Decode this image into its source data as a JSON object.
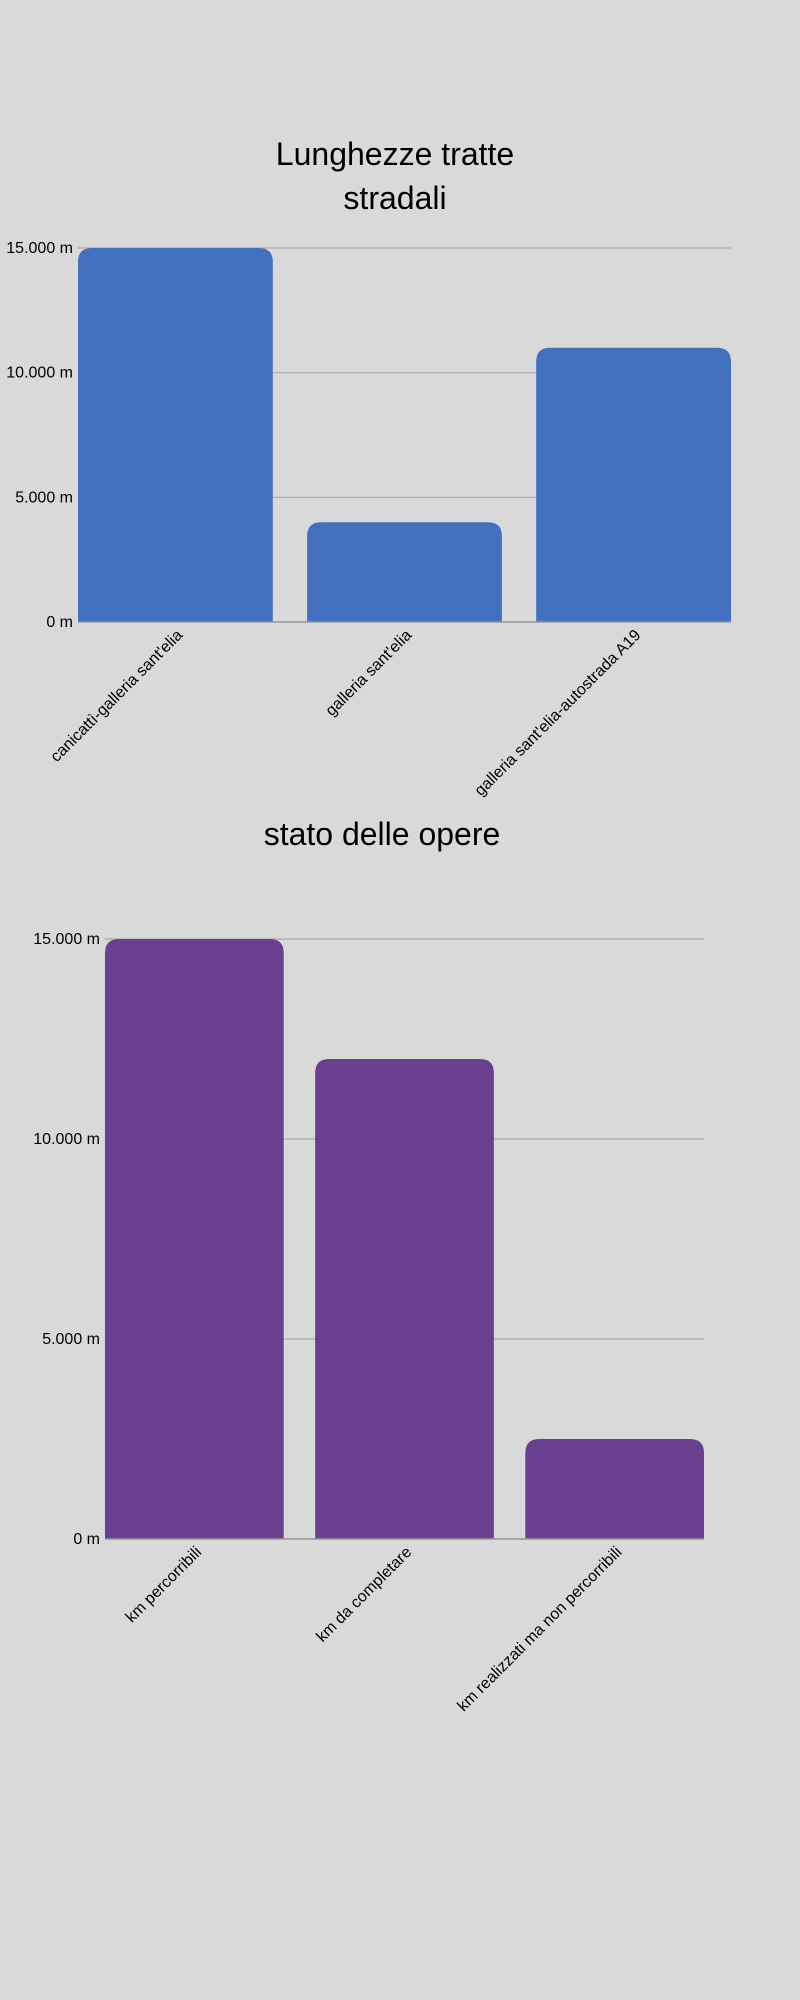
{
  "chart_data": [
    {
      "type": "bar",
      "title": "Lunghezze tratte stradali",
      "categories": [
        "canicattì-galleria sant'elia",
        "galleria sant'elia",
        "galleria sant'elia-autostrada A19"
      ],
      "values": [
        15000,
        4000,
        11000
      ],
      "ylim": [
        0,
        15000
      ],
      "yticks": [
        0,
        5000,
        10000,
        15000
      ],
      "ytick_labels": [
        "0 m",
        "5.000 m",
        "10.000 m",
        "15.000 m"
      ],
      "xlabel": "",
      "ylabel": "",
      "grid": true,
      "legend": "none",
      "color": "#4370be"
    },
    {
      "type": "bar",
      "title": "stato delle opere",
      "categories": [
        "km percorribili",
        "km da completare",
        "km realizzati ma non percorribili"
      ],
      "values": [
        15000,
        12000,
        2500
      ],
      "ylim": [
        0,
        15000
      ],
      "yticks": [
        0,
        5000,
        10000,
        15000
      ],
      "ytick_labels": [
        "0 m",
        "5.000 m",
        "10.000 m",
        "15.000 m"
      ],
      "xlabel": "",
      "ylabel": "",
      "grid": true,
      "legend": "none",
      "color": "#6a3f8f"
    }
  ]
}
